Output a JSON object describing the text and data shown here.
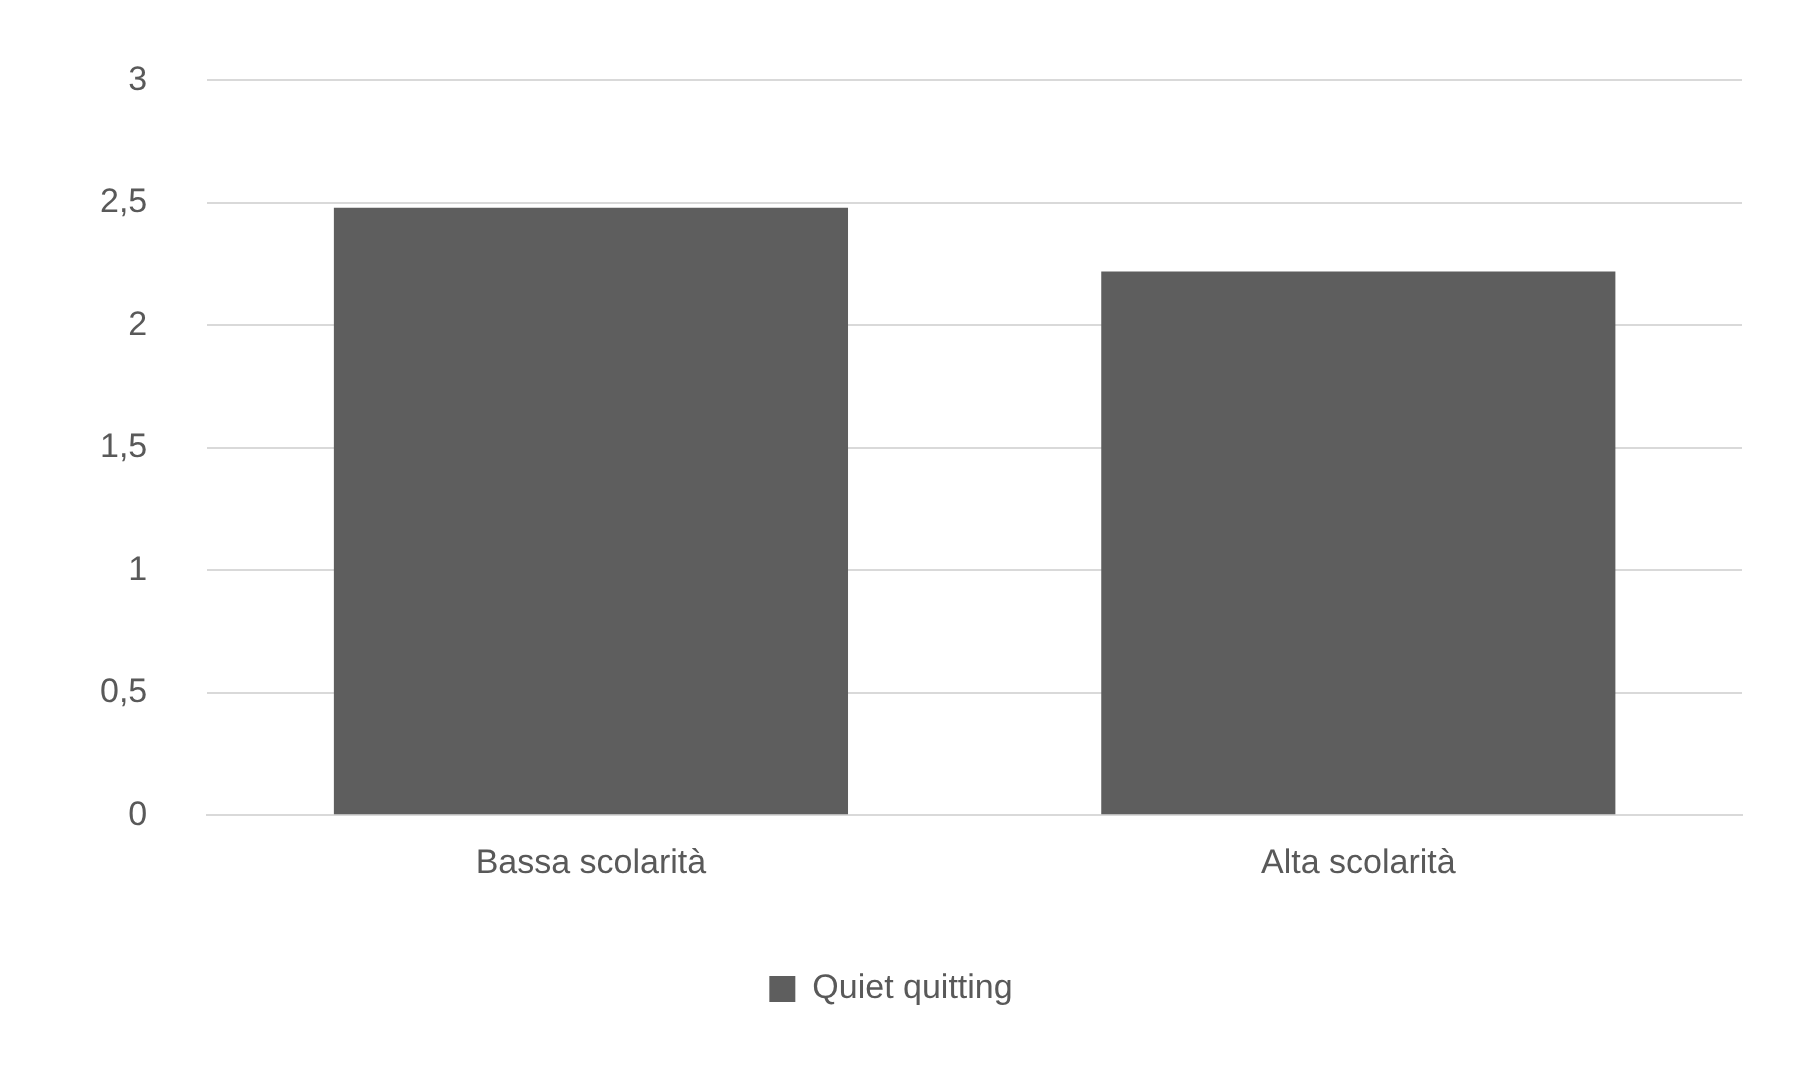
{
  "chart_data": {
    "type": "bar",
    "categories": [
      "Bassa scolarità",
      "Alta scolarità"
    ],
    "series": [
      {
        "name": "Quiet quitting",
        "color": "#5e5e5e",
        "values": [
          2.48,
          2.22
        ]
      }
    ],
    "ylim": [
      0,
      3
    ],
    "yticks": [
      0,
      {
        "value": 0.5,
        "label": "0,5"
      },
      1,
      {
        "value": 1.5,
        "label": "1,5"
      },
      2,
      {
        "value": 2.5,
        "label": "2,5"
      },
      3
    ],
    "grid": "y",
    "legend": "bottom"
  }
}
